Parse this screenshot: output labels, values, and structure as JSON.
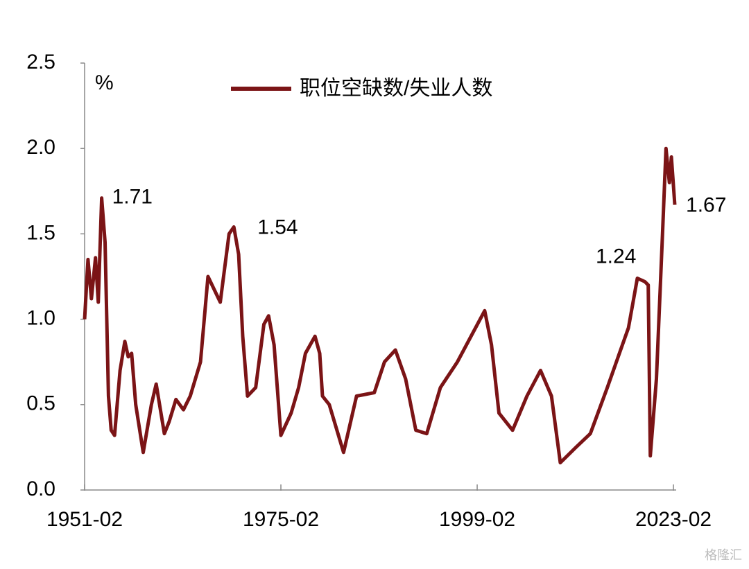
{
  "chart_data": {
    "type": "line",
    "unit_label": "%",
    "watermark": "格隆汇",
    "x": [
      "1951-02",
      "1951-07",
      "1951-12",
      "1952-06",
      "1952-10",
      "1953-03",
      "1953-08",
      "1954-01",
      "1954-05",
      "1954-10",
      "1955-06",
      "1956-01",
      "1956-06",
      "1956-11",
      "1957-05",
      "1958-04",
      "1959-04",
      "1959-11",
      "1960-11",
      "1961-06",
      "1962-04",
      "1963-03",
      "1964-01",
      "1965-04",
      "1966-03",
      "1966-09",
      "1967-09",
      "1968-10",
      "1969-05",
      "1969-12",
      "1970-06",
      "1971-01",
      "1972-01",
      "1973-01",
      "1973-08",
      "1974-04",
      "1975-02",
      "1976-05",
      "1977-04",
      "1978-02",
      "1979-04",
      "1979-11",
      "1980-03",
      "1981-01",
      "1982-10",
      "1984-05",
      "1986-07",
      "1987-10",
      "1989-02",
      "1990-05",
      "1991-08",
      "1992-12",
      "1994-08",
      "1996-09",
      "1998-05",
      "2000-01",
      "2000-11",
      "2001-10",
      "2003-06",
      "2005-03",
      "2006-11",
      "2008-03",
      "2009-04",
      "2011-03",
      "2012-12",
      "2015-01",
      "2016-04",
      "2017-08",
      "2018-09",
      "2019-08",
      "2020-01",
      "2020-04",
      "2021-01",
      "2021-10",
      "2022-03",
      "2022-08",
      "2022-11",
      "2023-04"
    ],
    "series": [
      {
        "name": "职位空缺数/失业人数",
        "color": "#7b1416",
        "values": [
          1.0,
          1.35,
          1.12,
          1.36,
          1.1,
          1.71,
          1.45,
          0.55,
          0.35,
          0.32,
          0.7,
          0.87,
          0.78,
          0.8,
          0.5,
          0.22,
          0.5,
          0.62,
          0.33,
          0.4,
          0.53,
          0.47,
          0.55,
          0.75,
          1.25,
          1.2,
          1.1,
          1.5,
          1.54,
          1.38,
          0.9,
          0.55,
          0.6,
          0.97,
          1.02,
          0.85,
          0.32,
          0.45,
          0.6,
          0.8,
          0.9,
          0.8,
          0.55,
          0.5,
          0.22,
          0.55,
          0.57,
          0.75,
          0.82,
          0.65,
          0.35,
          0.33,
          0.6,
          0.75,
          0.9,
          1.05,
          0.85,
          0.45,
          0.35,
          0.55,
          0.7,
          0.55,
          0.16,
          0.25,
          0.33,
          0.6,
          0.77,
          0.95,
          1.24,
          1.22,
          1.2,
          0.2,
          0.65,
          1.5,
          2.0,
          1.8,
          1.95,
          1.67
        ],
        "value_labels": [
          null,
          null,
          null,
          null,
          null,
          "1.71",
          null,
          null,
          null,
          null,
          null,
          null,
          null,
          null,
          null,
          null,
          null,
          null,
          null,
          null,
          null,
          null,
          null,
          null,
          null,
          null,
          null,
          null,
          "1.54",
          null,
          null,
          null,
          null,
          null,
          null,
          null,
          null,
          null,
          null,
          null,
          null,
          null,
          null,
          null,
          null,
          null,
          null,
          null,
          null,
          null,
          null,
          null,
          null,
          null,
          null,
          null,
          null,
          null,
          null,
          null,
          null,
          null,
          null,
          null,
          null,
          null,
          null,
          null,
          "1.24",
          null,
          null,
          null,
          null,
          null,
          null,
          null,
          null,
          "1.67"
        ]
      }
    ],
    "xlim": [
      "1951-02",
      "2023-06"
    ],
    "xticks": [
      "1951-02",
      "1975-02",
      "1999-02",
      "2023-02"
    ],
    "ylim": [
      0,
      2.5
    ],
    "yticks": [
      {
        "value": 0,
        "label": "0.0"
      },
      0.5,
      {
        "value": 1,
        "label": "1.0"
      },
      1.5,
      {
        "value": 2,
        "label": "2.0"
      },
      2.5
    ],
    "legend": "top"
  }
}
